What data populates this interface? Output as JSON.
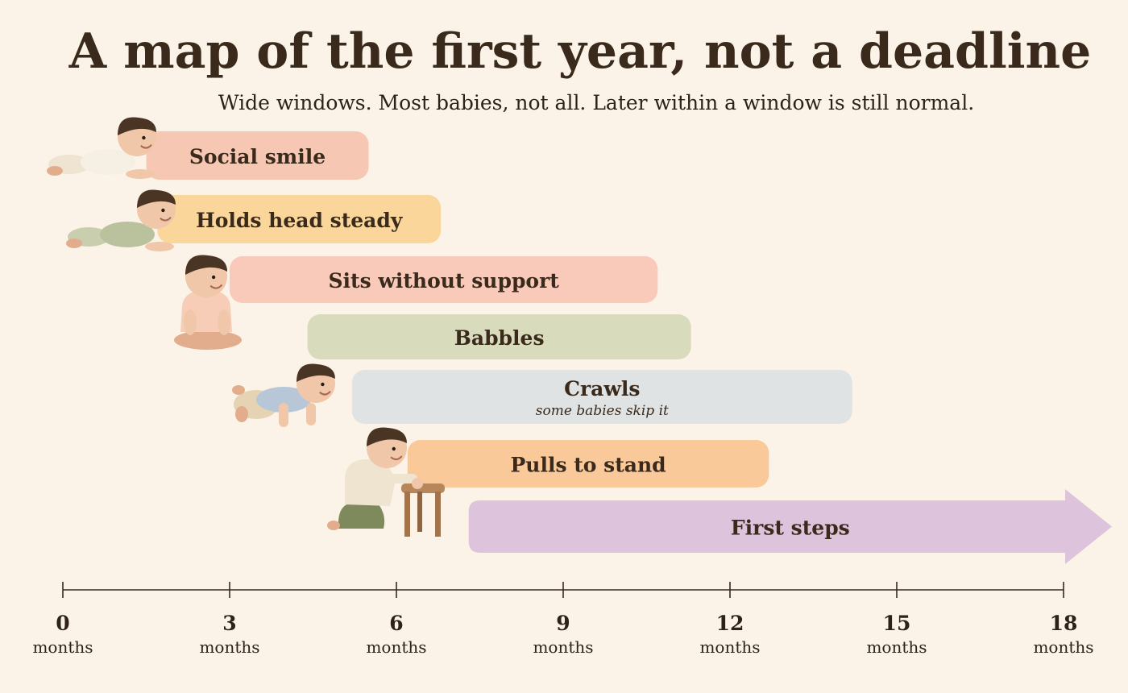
{
  "chart_data": {
    "type": "bar",
    "orientation": "horizontal-range",
    "title": "A map of the first year, not a deadline",
    "subtitle": "Wide windows. Most babies, not all. Later within a window is still normal.",
    "xlim": [
      0,
      18
    ],
    "x_ticks": [
      {
        "value": 0,
        "label": "0",
        "unit": "months"
      },
      {
        "value": 3,
        "label": "3",
        "unit": "months"
      },
      {
        "value": 6,
        "label": "6",
        "unit": "months"
      },
      {
        "value": 9,
        "label": "9",
        "unit": "months"
      },
      {
        "value": 12,
        "label": "12",
        "unit": "months"
      },
      {
        "value": 15,
        "label": "15",
        "unit": "months"
      },
      {
        "value": 18,
        "label": "18",
        "unit": "months"
      }
    ],
    "milestones": [
      {
        "label": "Social smile",
        "start": 1.5,
        "end": 5.5,
        "color": "#f6c8b3",
        "icon": "baby-tummy-time-icon"
      },
      {
        "label": "Holds head steady",
        "start": 1.7,
        "end": 6.8,
        "color": "#fbd69a",
        "icon": "baby-holding-head-icon"
      },
      {
        "label": "Sits without support",
        "start": 3.0,
        "end": 10.7,
        "color": "#f9c9ba",
        "icon": "baby-sitting-icon"
      },
      {
        "label": "Babbles",
        "start": 4.4,
        "end": 11.3,
        "color": "#d9dcbc",
        "icon": null
      },
      {
        "label": "Crawls",
        "note": "some babies skip it",
        "start": 5.2,
        "end": 14.2,
        "color": "#dfe3e4",
        "icon": "baby-crawling-icon"
      },
      {
        "label": "Pulls to stand",
        "start": 6.2,
        "end": 12.7,
        "color": "#f9c99a",
        "icon": "baby-pulling-to-stand-icon"
      },
      {
        "label": "First steps",
        "start": 7.3,
        "end": 18,
        "color": "#dec3dc",
        "icon": null,
        "open_ended": true
      }
    ]
  }
}
